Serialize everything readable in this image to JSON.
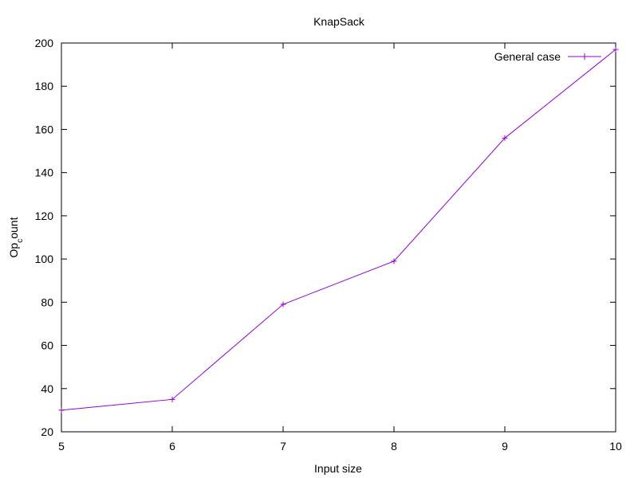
{
  "chart_data": {
    "type": "line",
    "title": "KnapSack",
    "xlabel": "Input size",
    "ylabel": "Op_count",
    "ylabel_main": "Op",
    "ylabel_sub": "c",
    "ylabel_rest": "ount",
    "x": [
      5,
      6,
      7,
      8,
      9,
      10
    ],
    "series": [
      {
        "name": "General case",
        "values": [
          30,
          35,
          79,
          99,
          156,
          197
        ],
        "color": "#9400d3",
        "marker": "plus"
      }
    ],
    "xlim": [
      5,
      10
    ],
    "ylim": [
      20,
      200
    ],
    "xticks": [
      5,
      6,
      7,
      8,
      9,
      10
    ],
    "yticks": [
      20,
      40,
      60,
      80,
      100,
      120,
      140,
      160,
      180,
      200
    ],
    "grid": false,
    "legend_position": "top-right"
  }
}
